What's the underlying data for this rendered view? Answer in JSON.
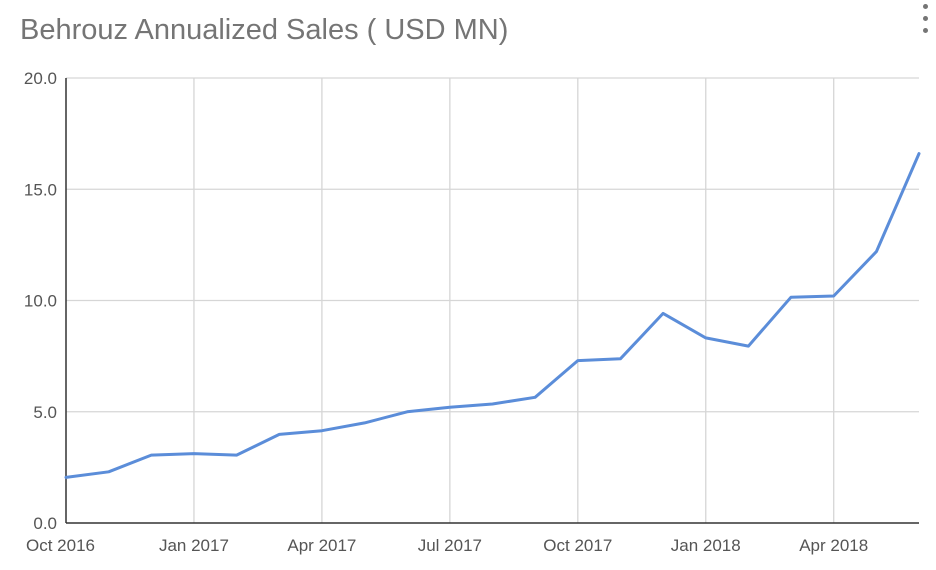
{
  "chart_data": {
    "type": "line",
    "title": "Behrouz Annualized Sales ( USD MN)",
    "xlabel": "",
    "ylabel": "",
    "ylim": [
      0,
      20
    ],
    "yticks": [
      "0.0",
      "5.0",
      "10.0",
      "15.0",
      "20.0"
    ],
    "xticks": [
      "Oct 2016",
      "Jan 2017",
      "Apr 2017",
      "Jul 2017",
      "Oct 2017",
      "Jan 2018",
      "Apr 2018"
    ],
    "grid": true,
    "legend": "none",
    "x": [
      "Oct 2016",
      "Nov 2016",
      "Dec 2016",
      "Jan 2017",
      "Feb 2017",
      "Mar 2017",
      "Apr 2017",
      "May 2017",
      "Jun 2017",
      "Jul 2017",
      "Aug 2017",
      "Sep 2017",
      "Oct 2017",
      "Nov 2017",
      "Dec 2017",
      "Jan 2018",
      "Feb 2018",
      "Mar 2018",
      "Apr 2018",
      "May 2018",
      "Jun 2018"
    ],
    "series": [
      {
        "color": "#5b8dd9",
        "values": [
          2.05,
          2.3,
          3.05,
          3.12,
          3.05,
          3.98,
          4.15,
          4.5,
          5.0,
          5.2,
          5.35,
          5.65,
          7.3,
          7.38,
          9.42,
          8.32,
          7.95,
          10.15,
          10.2,
          12.2,
          16.6
        ]
      }
    ]
  },
  "menu": {
    "icon": "more-vert-icon"
  }
}
